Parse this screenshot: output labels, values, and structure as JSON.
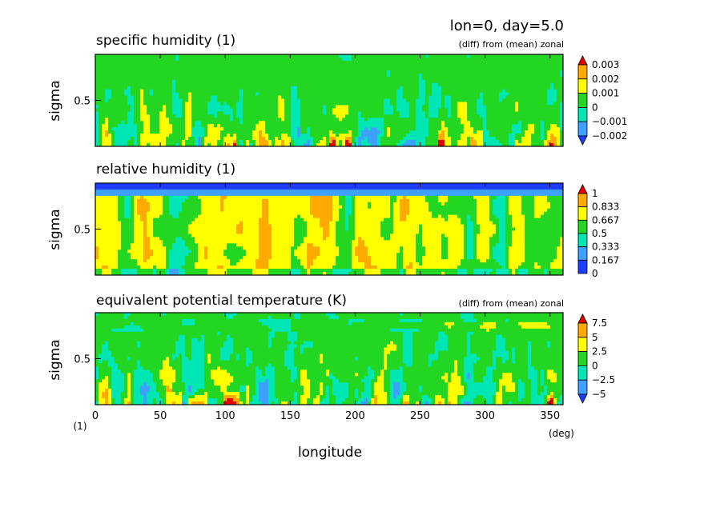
{
  "header": {
    "main": "lon=0, day=5.0"
  },
  "palette": [
    "#1e3cff",
    "#3ea0ff",
    "#00e6b4",
    "#22d622",
    "#ffff00",
    "#ffaa00",
    "#e60000"
  ],
  "chart_data": [
    {
      "type": "heatmap",
      "name": "specific-humidity",
      "title": "specific humidity (1)",
      "subtitle": "(diff) from (mean) zonal",
      "ylabel": "sigma",
      "yticks": [
        0.5
      ],
      "xlim": [
        0,
        360
      ],
      "ylim": [
        0,
        1
      ],
      "colorbar": {
        "labels": [
          "0.003",
          "0.002",
          "0.001",
          "0",
          "−0.001",
          "−0.002"
        ],
        "extend": "both",
        "bins": 7
      }
    },
    {
      "type": "heatmap",
      "name": "relative-humidity",
      "title": "relative humidity (1)",
      "subtitle": "",
      "ylabel": "sigma",
      "yticks": [
        0.5
      ],
      "xlim": [
        0,
        360
      ],
      "ylim": [
        0,
        1
      ],
      "colorbar": {
        "labels": [
          "1",
          "0.833",
          "0.667",
          "0.5",
          "0.333",
          "0.167",
          "0"
        ],
        "extend": "max",
        "bins": 7
      }
    },
    {
      "type": "heatmap",
      "name": "equivalent-potential-temperature",
      "title": "equivalent potential temperature (K)",
      "subtitle": "(diff) from (mean) zonal",
      "ylabel": "sigma",
      "yticks": [
        0.5
      ],
      "xlim": [
        0,
        360
      ],
      "ylim": [
        0,
        1
      ],
      "xlabel": "longitude",
      "xticks": [
        0,
        50,
        100,
        150,
        200,
        250,
        300,
        350
      ],
      "xunit": "(deg)",
      "yunit": "(1)",
      "colorbar": {
        "labels": [
          "7.5",
          "5",
          "2.5",
          "0",
          "−2.5",
          "−5"
        ],
        "extend": "both",
        "bins": 7
      }
    }
  ]
}
